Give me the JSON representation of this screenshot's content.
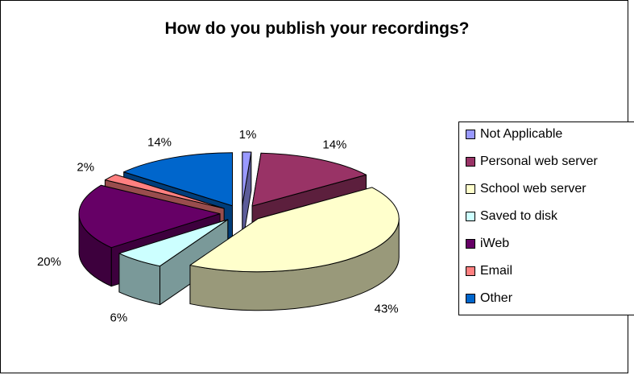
{
  "chart_data": {
    "type": "pie",
    "title": "How do you publish your recordings?",
    "legend_position": "right",
    "slices": [
      {
        "label": "Not Applicable",
        "value": 1,
        "display": "1%",
        "color": "#9999ff",
        "side": "#5c5c99"
      },
      {
        "label": "Personal web server",
        "value": 14,
        "display": "14%",
        "color": "#993366",
        "side": "#5c1f3d"
      },
      {
        "label": "School web server",
        "value": 43,
        "display": "43%",
        "color": "#ffffcc",
        "side": "#99997a"
      },
      {
        "label": "Saved to disk",
        "value": 6,
        "display": "6%",
        "color": "#ccffff",
        "side": "#7a9999"
      },
      {
        "label": "iWeb",
        "value": 20,
        "display": "20%",
        "color": "#660066",
        "side": "#3d003d"
      },
      {
        "label": "Email",
        "value": 2,
        "display": "2%",
        "color": "#ff8080",
        "side": "#994d4d"
      },
      {
        "label": "Other",
        "value": 14,
        "display": "14%",
        "color": "#0066cc",
        "side": "#003d7a"
      }
    ]
  }
}
